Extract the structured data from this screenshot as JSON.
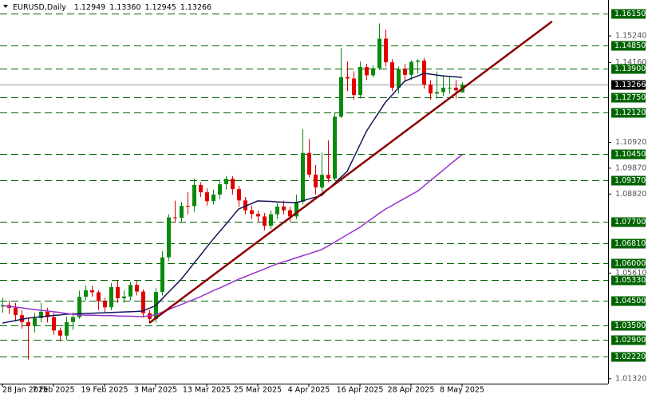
{
  "chart_data": {
    "type": "candlestick",
    "symbol": "EURUSD,Daily",
    "header_ohlc": [
      "1.12949",
      "1.13360",
      "1.12945",
      "1.13266"
    ],
    "categories": [
      "28 Jan 2025",
      null,
      null,
      null,
      null,
      null,
      null,
      null,
      "7 Feb 2025",
      null,
      null,
      null,
      null,
      null,
      null,
      null,
      "19 Feb 2025",
      null,
      null,
      null,
      null,
      null,
      null,
      null,
      "3 Mar 2025",
      null,
      null,
      null,
      null,
      null,
      null,
      null,
      "13 Mar 2025",
      null,
      null,
      null,
      null,
      null,
      null,
      null,
      "25 Mar 2025",
      null,
      null,
      null,
      null,
      null,
      null,
      null,
      "4 Apr 2025",
      null,
      null,
      null,
      null,
      null,
      null,
      null,
      "16 Apr 2025",
      null,
      null,
      null,
      null,
      null,
      null,
      null,
      "28 Apr 2025",
      null,
      null,
      null,
      null,
      null,
      null,
      null,
      "8 May 2025"
    ],
    "open": [
      1.0425,
      1.0431,
      1.042,
      1.039,
      1.0362,
      1.0346,
      1.0378,
      1.0404,
      1.0382,
      1.0328,
      1.0307,
      1.0362,
      1.0382,
      1.0465,
      1.0491,
      1.0483,
      1.0447,
      1.0422,
      1.0504,
      1.0459,
      1.0466,
      1.0513,
      1.0486,
      1.0398,
      1.0375,
      1.0484,
      1.0625,
      1.0787,
      1.0785,
      1.0834,
      1.0833,
      1.0919,
      1.0889,
      1.0853,
      1.088,
      1.0922,
      1.0944,
      1.0902,
      1.0856,
      1.0816,
      1.0801,
      1.0791,
      1.0753,
      1.08,
      1.0831,
      1.0816,
      1.0791,
      1.0851,
      1.1049,
      1.0961,
      1.0909,
      1.096,
      1.0945,
      1.1196,
      1.1357,
      1.1351,
      1.1284,
      1.1398,
      1.1364,
      1.1393,
      1.1513,
      1.1417,
      1.1314,
      1.139,
      1.1366,
      1.1419,
      1.1424,
      1.1327,
      1.129,
      1.1296,
      1.1314,
      1.1314,
      1.12949
    ],
    "high": [
      1.046,
      1.045,
      1.044,
      1.041,
      1.038,
      1.04,
      1.044,
      1.042,
      1.04,
      1.034,
      1.0385,
      1.04,
      1.049,
      1.051,
      1.051,
      1.049,
      1.046,
      1.052,
      1.053,
      1.049,
      1.0525,
      1.053,
      1.0495,
      1.041,
      1.05,
      1.065,
      1.08,
      1.0855,
      1.085,
      1.089,
      1.0945,
      1.093,
      1.0905,
      1.09,
      1.094,
      1.0955,
      1.0955,
      1.0915,
      1.087,
      1.0835,
      1.0815,
      1.0805,
      1.0815,
      1.0845,
      1.0855,
      1.083,
      1.088,
      1.1145,
      1.1105,
      1.1,
      1.105,
      1.11,
      1.1215,
      1.1475,
      1.142,
      1.138,
      1.142,
      1.141,
      1.1405,
      1.1575,
      1.155,
      1.143,
      1.14,
      1.141,
      1.1425,
      1.143,
      1.1435,
      1.1345,
      1.138,
      1.136,
      1.136,
      1.1345,
      1.1336
    ],
    "low": [
      1.04,
      1.0395,
      1.0365,
      1.0335,
      1.021,
      1.032,
      1.036,
      1.036,
      1.031,
      1.0285,
      1.029,
      1.033,
      1.0375,
      1.045,
      1.0465,
      1.041,
      1.04,
      1.041,
      1.044,
      1.044,
      1.045,
      1.047,
      1.038,
      1.036,
      1.036,
      1.047,
      1.061,
      1.0765,
      1.077,
      1.08,
      1.081,
      1.087,
      1.0835,
      1.084,
      1.086,
      1.09,
      1.088,
      1.083,
      1.08,
      1.078,
      1.077,
      1.0735,
      1.074,
      1.078,
      1.08,
      1.077,
      1.078,
      1.084,
      1.095,
      1.088,
      1.089,
      1.093,
      1.0935,
      1.119,
      1.13,
      1.1265,
      1.127,
      1.1345,
      1.1355,
      1.1385,
      1.14,
      1.13,
      1.129,
      1.134,
      1.1345,
      1.137,
      1.131,
      1.1265,
      1.127,
      1.128,
      1.129,
      1.127,
      1.12945
    ],
    "close": [
      1.0431,
      1.042,
      1.039,
      1.0362,
      1.0346,
      1.0378,
      1.0404,
      1.0382,
      1.0328,
      1.0307,
      1.0362,
      1.0382,
      1.0465,
      1.0491,
      1.0483,
      1.0447,
      1.0422,
      1.0504,
      1.0459,
      1.0466,
      1.0513,
      1.0486,
      1.0398,
      1.0375,
      1.0484,
      1.0625,
      1.0787,
      1.0785,
      1.0834,
      1.0833,
      1.0919,
      1.0889,
      1.0853,
      1.088,
      1.0922,
      1.0944,
      1.0902,
      1.0856,
      1.0816,
      1.0801,
      1.0791,
      1.0753,
      1.08,
      1.0831,
      1.0816,
      1.0791,
      1.0851,
      1.1049,
      1.0961,
      1.0909,
      1.096,
      1.0945,
      1.1196,
      1.1357,
      1.1351,
      1.1284,
      1.1398,
      1.1364,
      1.1393,
      1.1513,
      1.1417,
      1.1314,
      1.139,
      1.1366,
      1.1419,
      1.1424,
      1.1327,
      1.129,
      1.1296,
      1.1314,
      1.1314,
      1.1303,
      1.13266
    ],
    "up_color": "#0a8a0a",
    "down_color": "#e00000",
    "series": [
      {
        "color": "#14145a",
        "values": [
          1.0358,
          1.0363,
          1.0368,
          1.0373,
          1.0378,
          1.0381,
          1.0384,
          1.0386,
          1.0389,
          1.0391,
          1.0394,
          1.0395,
          1.0396,
          1.0397,
          1.0398,
          1.0399,
          1.04,
          1.0401,
          1.0402,
          1.0403,
          1.0404,
          1.0405,
          1.0407,
          1.0418,
          1.0429,
          1.0456,
          1.0483,
          1.0509,
          1.0536,
          1.0568,
          1.0601,
          1.0633,
          1.0666,
          1.0698,
          1.0729,
          1.0759,
          1.079,
          1.0821,
          1.0832,
          1.0843,
          1.0854,
          1.0853,
          1.0852,
          1.085,
          1.0849,
          1.0848,
          1.0847,
          1.0854,
          1.0862,
          1.0869,
          1.0876,
          1.0901,
          1.0925,
          1.095,
          1.0974,
          1.1028,
          1.1082,
          1.1136,
          1.1176,
          1.1215,
          1.1255,
          1.1283,
          1.1312,
          1.134,
          1.1351,
          1.1361,
          1.1372,
          1.1369,
          1.1365,
          1.1362,
          1.136,
          1.1358,
          1.1356
        ]
      },
      {
        "color": "#9932cc",
        "values": [
          1.0429,
          1.0426,
          1.0423,
          1.042,
          1.0416,
          1.0413,
          1.041,
          1.0407,
          1.0404,
          1.0401,
          1.0397,
          1.0394,
          1.0391,
          1.039,
          1.039,
          1.0389,
          1.0388,
          1.0388,
          1.0387,
          1.0386,
          1.0386,
          1.0385,
          1.0384,
          1.0388,
          1.0391,
          1.0402,
          1.0412,
          1.0423,
          1.0433,
          1.0444,
          1.0454,
          1.0465,
          1.0477,
          1.0489,
          1.05,
          1.0512,
          1.0524,
          1.0536,
          1.0546,
          1.0557,
          1.0567,
          1.0577,
          1.0588,
          1.0598,
          1.0606,
          1.0614,
          1.0623,
          1.0631,
          1.0639,
          1.0648,
          1.0656,
          1.0671,
          1.0686,
          1.0701,
          1.0717,
          1.0732,
          1.0747,
          1.0766,
          1.0784,
          1.0803,
          1.0821,
          1.0835,
          1.085,
          1.0864,
          1.0879,
          1.0893,
          1.0914,
          1.0936,
          1.0957,
          1.0978,
          1.1,
          1.1021,
          1.1042
        ]
      }
    ],
    "trendline": {
      "x": [
        23,
        86.1
      ],
      "values": [
        1.0358,
        1.1583
      ],
      "color": "#8b0000"
    },
    "levels": [
      {
        "value": 1.1615,
        "label": "1.16150"
      },
      {
        "value": 1.1485,
        "label": "1.14850"
      },
      {
        "value": 1.139,
        "label": "1.13900"
      },
      {
        "value": 1.1275,
        "label": "1.12750"
      },
      {
        "value": 1.1212,
        "label": "1.12120"
      },
      {
        "value": 1.1045,
        "label": "1.10450"
      },
      {
        "value": 1.0937,
        "label": "1.09370"
      },
      {
        "value": 1.077,
        "label": "1.07700"
      },
      {
        "value": 1.0681,
        "label": "1.06810"
      },
      {
        "value": 1.06,
        "label": "1.06000"
      },
      {
        "value": 1.0533,
        "label": "1.05330"
      },
      {
        "value": 1.045,
        "label": "1.04500"
      },
      {
        "value": 1.035,
        "label": "1.03500"
      },
      {
        "value": 1.029,
        "label": "1.02900"
      },
      {
        "value": 1.0222,
        "label": "1.02220"
      }
    ],
    "level_color": "#006400",
    "current_price": {
      "value": 1.13266,
      "label": "1.13266"
    },
    "ylim": [
      1.0112,
      1.167
    ],
    "yticks": [
      {
        "value": 1.1524,
        "label": "1.15240"
      },
      {
        "value": 1.1416,
        "label": "1.14160"
      },
      {
        "value": 1.1092,
        "label": "1.10920"
      },
      {
        "value": 1.0987,
        "label": "1.09870"
      },
      {
        "value": 1.0882,
        "label": "1.08820"
      },
      {
        "value": 1.0561,
        "label": "1.05610"
      },
      {
        "value": 1.0132,
        "label": "1.01320"
      }
    ]
  }
}
